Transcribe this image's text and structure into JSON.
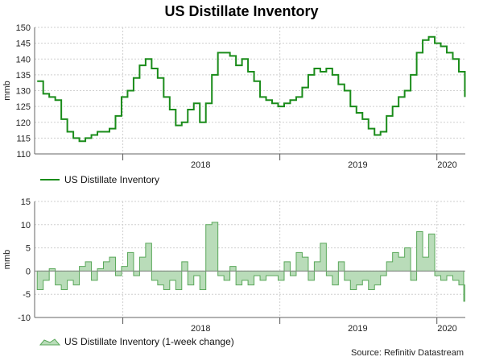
{
  "title": "US Distillate Inventory",
  "source": "Source: Refinitiv Datastream",
  "colors": {
    "line": "#1a8c1a",
    "area_fill": "#b9dcb9",
    "area_stroke": "#5aa85a",
    "grid": "#cfcfcf"
  },
  "chart_data": [
    {
      "type": "line",
      "ylabel": "mmb",
      "ylim": [
        110,
        150
      ],
      "yticks": [
        110,
        115,
        120,
        125,
        130,
        135,
        140,
        145,
        150
      ],
      "xlim": [
        "2017-06-10",
        "2020-03-07"
      ],
      "xticks": [
        {
          "date": "2018-01-01",
          "label": "2018",
          "mid": "2018-07-01"
        },
        {
          "date": "2019-01-01",
          "label": "2019",
          "mid": "2019-07-01"
        },
        {
          "date": "2020-01-01",
          "label": "2020",
          "mid": "2020-01-25"
        }
      ],
      "grid": true,
      "legend": "bottom-left",
      "series": [
        {
          "name": "US Distillate Inventory",
          "x": [
            "2017-06-16",
            "2017-06-30",
            "2017-07-14",
            "2017-07-28",
            "2017-08-11",
            "2017-08-25",
            "2017-09-08",
            "2017-09-22",
            "2017-10-06",
            "2017-10-20",
            "2017-11-03",
            "2017-11-17",
            "2017-12-01",
            "2017-12-15",
            "2017-12-29",
            "2018-01-12",
            "2018-01-26",
            "2018-02-09",
            "2018-02-23",
            "2018-03-09",
            "2018-03-23",
            "2018-04-06",
            "2018-04-20",
            "2018-05-04",
            "2018-05-18",
            "2018-06-01",
            "2018-06-15",
            "2018-06-29",
            "2018-07-13",
            "2018-07-27",
            "2018-08-10",
            "2018-08-24",
            "2018-09-07",
            "2018-09-21",
            "2018-10-05",
            "2018-10-19",
            "2018-11-02",
            "2018-11-16",
            "2018-11-30",
            "2018-12-14",
            "2018-12-28",
            "2019-01-11",
            "2019-01-25",
            "2019-02-08",
            "2019-02-22",
            "2019-03-08",
            "2019-03-22",
            "2019-04-05",
            "2019-04-19",
            "2019-05-03",
            "2019-05-17",
            "2019-05-31",
            "2019-06-14",
            "2019-06-28",
            "2019-07-12",
            "2019-07-26",
            "2019-08-09",
            "2019-08-23",
            "2019-09-06",
            "2019-09-20",
            "2019-10-04",
            "2019-10-18",
            "2019-11-01",
            "2019-11-15",
            "2019-11-29",
            "2019-12-13",
            "2019-12-27",
            "2020-01-10",
            "2020-01-24",
            "2020-02-07",
            "2020-02-21",
            "2020-03-06"
          ],
          "y": [
            133,
            129,
            128,
            127,
            121,
            117,
            115,
            114,
            115,
            116,
            117,
            117,
            118,
            122,
            128,
            130,
            134,
            138,
            140,
            137,
            134,
            128,
            124,
            119,
            120,
            124,
            126,
            120,
            126,
            135,
            142,
            142,
            141,
            138,
            140,
            136,
            133,
            128,
            127,
            126,
            125,
            126,
            127,
            128,
            131,
            135,
            137,
            136,
            137,
            135,
            132,
            130,
            125,
            123,
            121,
            118,
            116,
            117,
            122,
            125,
            128,
            130,
            135,
            142,
            146,
            147,
            145,
            144,
            142,
            140,
            136,
            128
          ]
        }
      ]
    },
    {
      "type": "area",
      "ylim": [
        -10,
        15
      ],
      "yticks": [
        -10,
        -5,
        0,
        5,
        10,
        15
      ],
      "ylabel": "mmb",
      "xlim": [
        "2017-06-10",
        "2020-03-07"
      ],
      "xticks": [
        {
          "date": "2018-01-01",
          "label": "2018",
          "mid": "2018-07-01"
        },
        {
          "date": "2019-01-01",
          "label": "2019",
          "mid": "2019-07-01"
        },
        {
          "date": "2020-01-01",
          "label": "2020",
          "mid": "2020-01-25"
        }
      ],
      "grid": true,
      "legend": "bottom-left",
      "series": [
        {
          "name": "US Distillate Inventory (1-week change)",
          "x": [
            "2017-06-16",
            "2017-06-30",
            "2017-07-14",
            "2017-07-28",
            "2017-08-11",
            "2017-08-25",
            "2017-09-08",
            "2017-09-22",
            "2017-10-06",
            "2017-10-20",
            "2017-11-03",
            "2017-11-17",
            "2017-12-01",
            "2017-12-15",
            "2017-12-29",
            "2018-01-12",
            "2018-01-26",
            "2018-02-09",
            "2018-02-23",
            "2018-03-09",
            "2018-03-23",
            "2018-04-06",
            "2018-04-20",
            "2018-05-04",
            "2018-05-18",
            "2018-06-01",
            "2018-06-15",
            "2018-06-29",
            "2018-07-13",
            "2018-07-27",
            "2018-08-10",
            "2018-08-24",
            "2018-09-07",
            "2018-09-21",
            "2018-10-05",
            "2018-10-19",
            "2018-11-02",
            "2018-11-16",
            "2018-11-30",
            "2018-12-14",
            "2018-12-28",
            "2019-01-11",
            "2019-01-25",
            "2019-02-08",
            "2019-02-22",
            "2019-03-08",
            "2019-03-22",
            "2019-04-05",
            "2019-04-19",
            "2019-05-03",
            "2019-05-17",
            "2019-05-31",
            "2019-06-14",
            "2019-06-28",
            "2019-07-12",
            "2019-07-26",
            "2019-08-09",
            "2019-08-23",
            "2019-09-06",
            "2019-09-20",
            "2019-10-04",
            "2019-10-18",
            "2019-11-01",
            "2019-11-15",
            "2019-11-29",
            "2019-12-13",
            "2019-12-27",
            "2020-01-10",
            "2020-01-24",
            "2020-02-07",
            "2020-02-21",
            "2020-03-06"
          ],
          "y": [
            -4,
            -2,
            0.5,
            -3,
            -4,
            -2,
            -3,
            1,
            2,
            -2,
            0.5,
            2,
            3,
            -1,
            1,
            4,
            -1,
            3,
            6,
            -2,
            -3,
            -4,
            -2,
            -4,
            2,
            -3,
            -1,
            -4,
            10,
            10.5,
            -1,
            -2,
            1,
            -3,
            -2,
            -3,
            -1,
            -2,
            -1,
            -1,
            -2,
            2,
            -1,
            4,
            3,
            -2,
            2,
            6,
            -1,
            -3,
            2,
            -2,
            -4,
            -3,
            -2,
            -4,
            -3,
            -1,
            2,
            4,
            3,
            5,
            -2,
            8.5,
            3,
            8,
            -1,
            -2,
            -1,
            -2,
            -3,
            -6.5
          ]
        }
      ]
    }
  ]
}
